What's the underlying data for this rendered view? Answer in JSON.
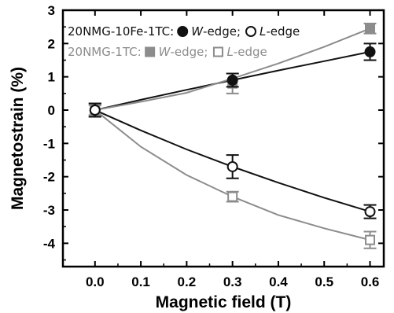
{
  "chart_data": {
    "type": "scatter",
    "xlabel": "Magnetic field (T)",
    "ylabel": "Magnetostrain (%)",
    "xlim": [
      -0.07,
      0.63
    ],
    "ylim": [
      -4.7,
      3
    ],
    "x_ticks": [
      "0.0",
      "0.1",
      "0.2",
      "0.3",
      "0.4",
      "0.5",
      "0.6"
    ],
    "y_ticks": [
      "3",
      "2",
      "1",
      "0",
      "-1",
      "-2",
      "-3",
      "-4"
    ],
    "x_tick_values": [
      0.0,
      0.1,
      0.2,
      0.3,
      0.4,
      0.5,
      0.6
    ],
    "y_tick_values": [
      3,
      2,
      1,
      0,
      -1,
      -2,
      -3,
      -4
    ],
    "legend": [
      {
        "prefix": "20NMG-10Fe-1TC:",
        "entries": [
          {
            "label": "W",
            "suffix": "-edge;",
            "marker": "filled-circle"
          },
          {
            "label": "L",
            "suffix": "-edge",
            "marker": "open-circle"
          }
        ],
        "color": "#111111"
      },
      {
        "prefix": "20NMG-1TC:",
        "entries": [
          {
            "label": "W",
            "suffix": "-edge;",
            "marker": "filled-square"
          },
          {
            "label": "L",
            "suffix": "-edge",
            "marker": "open-square"
          }
        ],
        "color": "#8c8c8c"
      }
    ],
    "series": [
      {
        "sample": "20NMG-10Fe-1TC",
        "edge": "W",
        "marker": "filled-circle",
        "color": "#111111",
        "x": [
          0.0,
          0.3,
          0.6
        ],
        "y": [
          0.0,
          0.9,
          1.75
        ],
        "yerr": [
          0.2,
          0.2,
          0.25
        ]
      },
      {
        "sample": "20NMG-10Fe-1TC",
        "edge": "L",
        "marker": "open-circle",
        "color": "#111111",
        "x": [
          0.0,
          0.3,
          0.6
        ],
        "y": [
          0.0,
          -1.7,
          -3.05
        ],
        "yerr": [
          0.2,
          0.35,
          0.2
        ]
      },
      {
        "sample": "20NMG-1TC",
        "edge": "W",
        "marker": "filled-square",
        "color": "#8c8c8c",
        "x": [
          0.0,
          0.3,
          0.6
        ],
        "y": [
          0.0,
          0.8,
          2.45
        ],
        "yerr": [
          0.15,
          0.3,
          0.15
        ]
      },
      {
        "sample": "20NMG-1TC",
        "edge": "L",
        "marker": "open-square",
        "color": "#8c8c8c",
        "x": [
          0.0,
          0.3,
          0.6
        ],
        "y": [
          0.0,
          -2.6,
          -3.9
        ],
        "yerr": [
          0.15,
          0.15,
          0.25
        ]
      }
    ],
    "fits": [
      {
        "series": "20NMG-10Fe-1TC W",
        "color": "#111111",
        "x": [
          0.0,
          0.1,
          0.2,
          0.3,
          0.4,
          0.5,
          0.6
        ],
        "y": [
          0.0,
          0.31,
          0.61,
          0.9,
          1.19,
          1.47,
          1.75
        ]
      },
      {
        "series": "20NMG-10Fe-1TC L",
        "color": "#111111",
        "x": [
          0.0,
          0.1,
          0.2,
          0.3,
          0.4,
          0.5,
          0.6
        ],
        "y": [
          0.0,
          -0.61,
          -1.18,
          -1.7,
          -2.18,
          -2.63,
          -3.05
        ]
      },
      {
        "series": "20NMG-1TC W",
        "color": "#8c8c8c",
        "x": [
          0.0,
          0.1,
          0.2,
          0.3,
          0.4,
          0.5,
          0.6
        ],
        "y": [
          0.0,
          0.25,
          0.52,
          0.95,
          1.4,
          1.9,
          2.45
        ]
      },
      {
        "series": "20NMG-1TC L",
        "color": "#8c8c8c",
        "x": [
          0.0,
          0.1,
          0.2,
          0.3,
          0.4,
          0.5,
          0.6
        ],
        "y": [
          0.0,
          -1.1,
          -1.95,
          -2.6,
          -3.15,
          -3.55,
          -3.9
        ]
      }
    ],
    "grid": false,
    "legend_placement": "top-left"
  }
}
